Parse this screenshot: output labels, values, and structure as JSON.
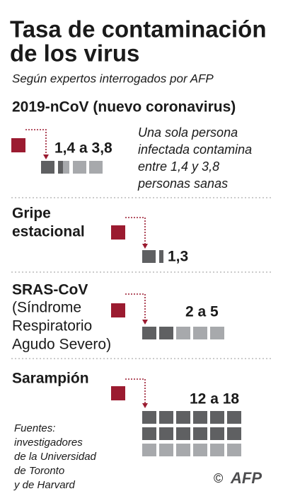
{
  "header": {
    "title": [
      "Tasa de contaminación",
      "de los virus"
    ],
    "subtitle": "Según expertos interrogados por AFP"
  },
  "sections": [
    {
      "name": [
        "2019-nCoV (nuevo coronavirus)"
      ],
      "range": "1,4 a 3,8",
      "description": [
        "Una sola persona",
        "infectada contamina",
        "entre 1,4 y 3,8",
        "personas sanas"
      ]
    },
    {
      "name": [
        "Gripe",
        "estacional"
      ],
      "range": "1,3"
    },
    {
      "name": [
        "SRAS-CoV"
      ],
      "detail": [
        "(Síndrome",
        "Respiratorio",
        "Agudo Severo)"
      ],
      "range": "2 a 5"
    },
    {
      "name": [
        "Sarampión"
      ],
      "range": "12 a 18"
    }
  ],
  "sources": [
    "Fuentes:",
    "investigadores",
    "de la Universidad",
    "de Toronto",
    "y de Harvard"
  ],
  "credit": {
    "copyright": "©",
    "logo": "AFP"
  }
}
